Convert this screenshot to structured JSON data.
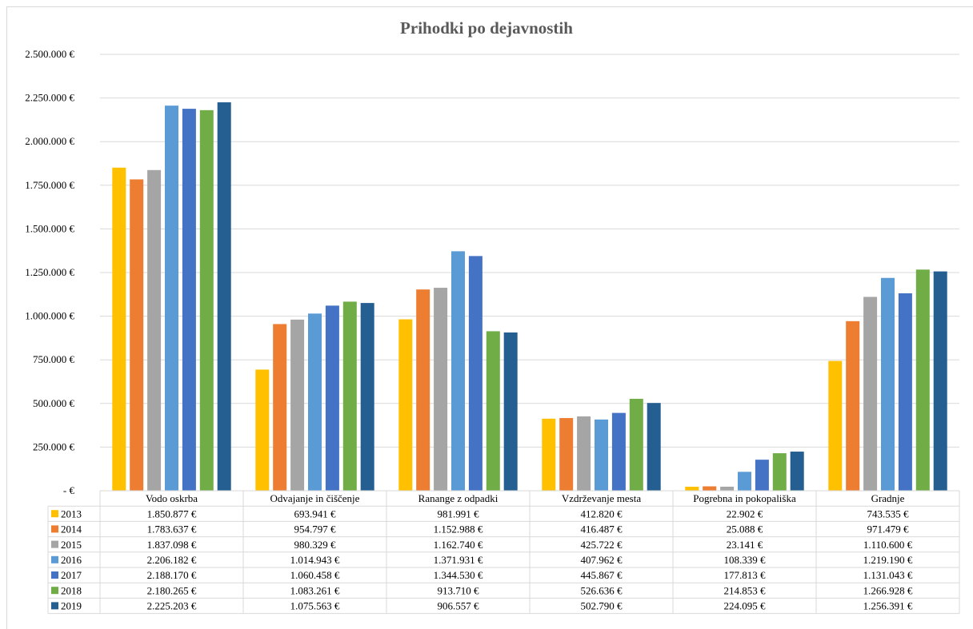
{
  "chart_data": {
    "type": "bar",
    "title": "Prihodki po dejavnostih",
    "categories": [
      "Vodo oskrba",
      "Odvajanje in čiščenje",
      "Ranange z odpadki",
      "Vzdrževanje mesta",
      "Pogrebna in pokopališka",
      "Gradnje"
    ],
    "ylim": [
      0,
      2500000
    ],
    "y_tick_values": [
      0,
      250000,
      500000,
      750000,
      1000000,
      1250000,
      1500000,
      1750000,
      2000000,
      2250000,
      2500000
    ],
    "y_tick_labels": [
      "-  €",
      "250.000 €",
      "500.000 €",
      "750.000 €",
      "1.000.000 €",
      "1.250.000 €",
      "1.500.000 €",
      "1.750.000 €",
      "2.000.000 €",
      "2.250.000 €",
      "2.500.000 €"
    ],
    "grid": true,
    "legend": "data-table-left",
    "series": [
      {
        "name": "2013",
        "color": "#ffc000",
        "values": [
          1850877,
          693941,
          981991,
          412820,
          22902,
          743535
        ],
        "labels": [
          "1.850.877 €",
          "693.941 €",
          "981.991 €",
          "412.820 €",
          "22.902 €",
          "743.535 €"
        ]
      },
      {
        "name": "2014",
        "color": "#ed7d31",
        "values": [
          1783637,
          954797,
          1152988,
          416487,
          25088,
          971479
        ],
        "labels": [
          "1.783.637 €",
          "954.797 €",
          "1.152.988 €",
          "416.487 €",
          "25.088 €",
          "971.479 €"
        ]
      },
      {
        "name": "2015",
        "color": "#a5a5a5",
        "values": [
          1837098,
          980329,
          1162740,
          425722,
          23141,
          1110600
        ],
        "labels": [
          "1.837.098 €",
          "980.329 €",
          "1.162.740 €",
          "425.722 €",
          "23.141 €",
          "1.110.600 €"
        ]
      },
      {
        "name": "2016",
        "color": "#5b9bd5",
        "values": [
          2206182,
          1014943,
          1371931,
          407962,
          108339,
          1219190
        ],
        "labels": [
          "2.206.182 €",
          "1.014.943 €",
          "1.371.931 €",
          "407.962 €",
          "108.339 €",
          "1.219.190 €"
        ]
      },
      {
        "name": "2017",
        "color": "#4472c4",
        "values": [
          2188170,
          1060458,
          1344530,
          445867,
          177813,
          1131043
        ],
        "labels": [
          "2.188.170 €",
          "1.060.458 €",
          "1.344.530 €",
          "445.867 €",
          "177.813 €",
          "1.131.043 €"
        ]
      },
      {
        "name": "2018",
        "color": "#70ad47",
        "values": [
          2180265,
          1083261,
          913710,
          526636,
          214853,
          1266928
        ],
        "labels": [
          "2.180.265 €",
          "1.083.261 €",
          "913.710 €",
          "526.636 €",
          "214.853 €",
          "1.266.928 €"
        ]
      },
      {
        "name": "2019",
        "color": "#255e91",
        "values": [
          2225203,
          1075563,
          906557,
          502790,
          224095,
          1256391
        ],
        "labels": [
          "2.225.203 €",
          "1.075.563 €",
          "906.557 €",
          "502.790 €",
          "224.095 €",
          "1.256.391 €"
        ]
      }
    ]
  }
}
